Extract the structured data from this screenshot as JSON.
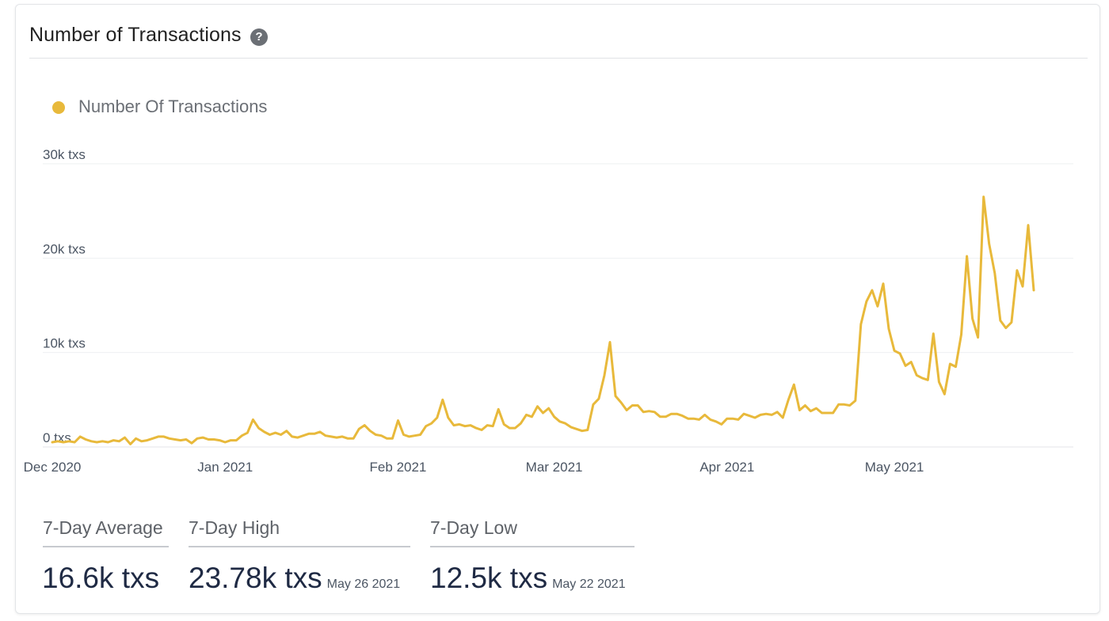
{
  "panel": {
    "title": "Number of Transactions",
    "help_icon": "question-circle-icon"
  },
  "legend": {
    "label": "Number Of Transactions",
    "color": "#e8b93b"
  },
  "stats": [
    {
      "label": "7-Day Average",
      "value": "16.6k txs",
      "date": ""
    },
    {
      "label": "7-Day High",
      "value": "23.78k txs",
      "date": "May 26 2021"
    },
    {
      "label": "7-Day Low",
      "value": "12.5k txs",
      "date": "May 22 2021"
    }
  ],
  "chart_data": {
    "type": "line",
    "title": "",
    "xlabel": "",
    "ylabel": "",
    "ylim": [
      0,
      30000
    ],
    "yticks": [
      0,
      10000,
      20000,
      30000
    ],
    "ytick_labels": [
      "0 txs",
      "10k txs",
      "20k txs",
      "30k txs"
    ],
    "xtick_labels": [
      "Dec 2020",
      "Jan 2021",
      "Feb 2021",
      "Mar 2021",
      "Apr 2021",
      "May 2021"
    ],
    "xtick_dates": [
      "2020-12-01",
      "2021-01-01",
      "2021-02-01",
      "2021-03-01",
      "2021-04-01",
      "2021-05-01"
    ],
    "x_start": "2020-12-01",
    "grid": true,
    "legend_position": "top-left",
    "series": [
      {
        "name": "Number Of Transactions",
        "color": "#e8b93b",
        "values": [
          500,
          600,
          500,
          600,
          500,
          1100,
          800,
          600,
          500,
          600,
          500,
          700,
          600,
          1000,
          300,
          900,
          600,
          700,
          900,
          1100,
          1100,
          900,
          800,
          700,
          800,
          400,
          900,
          1000,
          800,
          800,
          700,
          500,
          700,
          700,
          1200,
          1500,
          2900,
          2000,
          1600,
          1300,
          1500,
          1300,
          1700,
          1100,
          1000,
          1200,
          1400,
          1400,
          1600,
          1200,
          1100,
          1000,
          1100,
          900,
          900,
          1900,
          2300,
          1700,
          1300,
          1200,
          900,
          900,
          2800,
          1300,
          1100,
          1200,
          1300,
          2200,
          2500,
          3100,
          5000,
          3100,
          2300,
          2400,
          2200,
          2300,
          2000,
          1800,
          2300,
          2200,
          4000,
          2400,
          2000,
          2000,
          2500,
          3400,
          3200,
          4300,
          3600,
          4100,
          3200,
          2700,
          2500,
          2100,
          1900,
          1700,
          1800,
          4500,
          5100,
          7600,
          11100,
          5400,
          4700,
          3900,
          4400,
          4400,
          3700,
          3800,
          3700,
          3200,
          3200,
          3500,
          3500,
          3300,
          3000,
          3000,
          2900,
          3400,
          2900,
          2700,
          2400,
          3000,
          3000,
          2900,
          3500,
          3300,
          3100,
          3400,
          3500,
          3400,
          3700,
          3100,
          5000,
          6600,
          3900,
          4400,
          3800,
          4100,
          3600,
          3600,
          3600,
          4500,
          4500,
          4400,
          4900,
          13000,
          15400,
          16600,
          14900,
          17300,
          12500,
          10200,
          9900,
          8600,
          9000,
          7600,
          7300,
          7100,
          12000,
          6900,
          5600,
          8800,
          8500,
          11900,
          20200,
          13600,
          11600,
          26500,
          21500,
          18400,
          13400,
          12600,
          13200,
          18700,
          17000,
          23500,
          16600
        ]
      }
    ]
  }
}
